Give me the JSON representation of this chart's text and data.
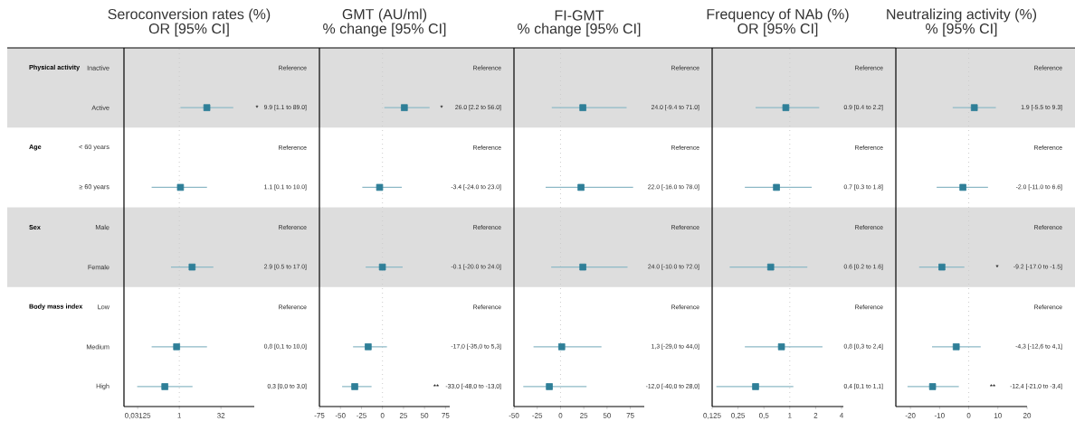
{
  "chart_data": [
    {
      "type": "scatter",
      "orientation": "horizontal",
      "title": "Seroconversion rates (%)",
      "subtitle": "OR [95% CI]",
      "log": "x",
      "categories": [
        "Inactive",
        "Active",
        "< 60 years",
        "≥ 60 years",
        "Male",
        "Female",
        "Low",
        "Medium",
        "High"
      ],
      "values": [
        null,
        9.9,
        null,
        1.1,
        null,
        2.9,
        null,
        0.8,
        0.3
      ],
      "errors": [
        null,
        [
          1.1,
          89.0
        ],
        null,
        [
          0.1,
          10.0
        ],
        null,
        [
          0.5,
          17.0
        ],
        null,
        [
          0.1,
          10.0
        ],
        [
          0.03,
          3.0
        ]
      ],
      "value_labels": [
        "Reference",
        "9.9 [1.1 to 89.0]",
        "Reference",
        "1.1 [0.1 to 10.0]",
        "Reference",
        "2.9 [0.5 to 17.0]",
        "Reference",
        "0,8 [0,1 to 10,0]",
        "0,3 [0,0 to 3,0]"
      ],
      "color": "#2f7f98",
      "marker": "square",
      "xlim": [
        0.01,
        512
      ],
      "xticks": [
        {
          "value": 0.03125,
          "label": "0,03125"
        },
        1,
        32
      ],
      "ref_lines": [
        {
          "axis": "x",
          "value": 1,
          "color": "#cccccc",
          "line_style": "dotted"
        }
      ],
      "bands": [
        {
          "axis": "y",
          "from": "Inactive",
          "to": "Active",
          "color": "#dddddd"
        },
        {
          "axis": "y",
          "from": "Male",
          "to": "Female",
          "color": "#dddddd"
        }
      ],
      "annotations": [
        "Physical activity",
        "Age",
        "Sex",
        "Body mass index",
        "*"
      ]
    },
    {
      "type": "scatter",
      "orientation": "horizontal",
      "title": "GMT (AU/ml)",
      "subtitle": "% change [95% CI]",
      "tick_labels": "x",
      "categories": [
        "Inactive",
        "Active",
        "< 60 years",
        "≥ 60 years",
        "Male",
        "Female",
        "Low",
        "Medium",
        "High"
      ],
      "values": [
        null,
        26.0,
        null,
        -3.4,
        null,
        -0.1,
        null,
        -17.0,
        -33.0
      ],
      "errors": [
        null,
        [
          2.2,
          56.0
        ],
        null,
        [
          -24.0,
          23.0
        ],
        null,
        [
          -20.0,
          24.0
        ],
        null,
        [
          -35.0,
          5.3
        ],
        [
          -48.0,
          -13.0
        ]
      ],
      "value_labels": [
        "Reference",
        "26.0 [2.2 to 56.0]",
        "Reference",
        "-3.4 [-24.0 to 23.0]",
        "Reference",
        "-0.1 [-20.0 to 24.0]",
        "Reference",
        "-17,0 [-35,0 to 5,3]",
        "-33,0 [-48,0 to -13,0]"
      ],
      "color": "#2f7f98",
      "marker": "square",
      "xlim": [
        -75,
        80
      ],
      "xticks": [
        -75,
        -50,
        -25,
        0,
        25,
        50,
        75
      ],
      "ref_lines": [
        {
          "axis": "x",
          "value": 0,
          "color": "#cccccc",
          "line_style": "dotted"
        }
      ],
      "bands": [
        {
          "axis": "y",
          "from": "Inactive",
          "to": "Active",
          "color": "#dddddd"
        },
        {
          "axis": "y",
          "from": "Male",
          "to": "Female",
          "color": "#dddddd"
        }
      ],
      "annotations": [
        "*",
        "**"
      ]
    },
    {
      "type": "scatter",
      "orientation": "horizontal",
      "title": "FI-GMT",
      "subtitle": "% change [95% CI]",
      "tick_labels": "x",
      "categories": [
        "Inactive",
        "Active",
        "< 60 years",
        "≥ 60 years",
        "Male",
        "Female",
        "Low",
        "Medium",
        "High"
      ],
      "values": [
        null,
        24.0,
        null,
        22.0,
        null,
        24.0,
        null,
        1.3,
        -12.0
      ],
      "errors": [
        null,
        [
          -9.4,
          71.0
        ],
        null,
        [
          -16.0,
          78.0
        ],
        null,
        [
          -10.0,
          72.0
        ],
        null,
        [
          -29.0,
          44.0
        ],
        [
          -40.0,
          28.0
        ]
      ],
      "value_labels": [
        "Reference",
        "24.0 [-9.4 to 71.0]",
        "Reference",
        "22.0 [-16.0 to 78.0]",
        "Reference",
        "24.0 [-10.0 to 72.0]",
        "Reference",
        "1,3 [-29,0 to 44,0]",
        "-12,0 [-40,0 to 28,0]"
      ],
      "color": "#2f7f98",
      "marker": "square",
      "xlim": [
        -50,
        90
      ],
      "xticks": [
        -50,
        -25,
        0,
        25,
        50,
        75
      ],
      "ref_lines": [
        {
          "axis": "x",
          "value": 0,
          "color": "#cccccc",
          "line_style": "dotted"
        }
      ],
      "bands": [
        {
          "axis": "y",
          "from": "Inactive",
          "to": "Active",
          "color": "#dddddd"
        },
        {
          "axis": "y",
          "from": "Male",
          "to": "Female",
          "color": "#dddddd"
        }
      ]
    },
    {
      "type": "scatter",
      "orientation": "horizontal",
      "title": "Frequency of NAb (%)",
      "subtitle": "OR [95% CI]",
      "tick_labels": "x",
      "log": "x",
      "categories": [
        "Inactive",
        "Active",
        "< 60 years",
        "≥ 60 years",
        "Male",
        "Female",
        "Low",
        "Medium",
        "High"
      ],
      "values": [
        null,
        0.9,
        null,
        0.7,
        null,
        0.6,
        null,
        0.8,
        0.4
      ],
      "errors": [
        null,
        [
          0.4,
          2.2
        ],
        null,
        [
          0.3,
          1.8
        ],
        null,
        [
          0.2,
          1.6
        ],
        null,
        [
          0.3,
          2.4
        ],
        [
          0.14,
          1.1
        ]
      ],
      "value_labels": [
        "Reference",
        "0.9 [0.4 to 2.2]",
        "Reference",
        "0.7 [0.3 to 1.8]",
        "Reference",
        "0.6 [0.2 to 1.6]",
        "Reference",
        "0,8 [0,3 to 2,4]",
        "0,4 [0,1 to 1,1]"
      ],
      "color": "#2f7f98",
      "marker": "square",
      "xlim": [
        0.125,
        4.2
      ],
      "xticks": [
        {
          "value": 0.125,
          "label": "0,125"
        },
        {
          "value": 0.25,
          "label": "0,25"
        },
        {
          "value": 0.5,
          "label": "0,5"
        },
        1,
        2,
        4
      ],
      "ref_lines": [
        {
          "axis": "x",
          "value": 1,
          "color": "#cccccc",
          "line_style": "dotted"
        }
      ],
      "bands": [
        {
          "axis": "y",
          "from": "Inactive",
          "to": "Active",
          "color": "#dddddd"
        },
        {
          "axis": "y",
          "from": "Male",
          "to": "Female",
          "color": "#dddddd"
        }
      ]
    },
    {
      "type": "scatter",
      "orientation": "horizontal",
      "title": "Neutralizing activity (%)",
      "subtitle": "% [95% CI]",
      "tick_labels": "x",
      "categories": [
        "Inactive",
        "Active",
        "< 60 years",
        "≥ 60 years",
        "Male",
        "Female",
        "Low",
        "Medium",
        "High"
      ],
      "values": [
        null,
        1.9,
        null,
        -2.0,
        null,
        -9.2,
        null,
        -4.3,
        -12.4
      ],
      "errors": [
        null,
        [
          -5.5,
          9.3
        ],
        null,
        [
          -11.0,
          6.6
        ],
        null,
        [
          -17.0,
          -1.5
        ],
        null,
        [
          -12.6,
          4.1
        ],
        [
          -21.0,
          -3.4
        ]
      ],
      "value_labels": [
        "Reference",
        "1.9 [-5.5 to 9.3]",
        "Reference",
        "-2.0 [-11.0 to 6.6]",
        "Reference",
        "-9.2 [-17.0 to -1.5]",
        "Reference",
        "-4,3 [-12,6 to 4,1]",
        "-12,4 [-21,0 to -3,4]"
      ],
      "color": "#2f7f98",
      "marker": "square",
      "xlim": [
        -25,
        20
      ],
      "xticks": [
        -20,
        -10,
        0,
        10,
        20
      ],
      "ref_lines": [
        {
          "axis": "x",
          "value": 0,
          "color": "#cccccc",
          "line_style": "dotted"
        }
      ],
      "bands": [
        {
          "axis": "y",
          "from": "Inactive",
          "to": "Active",
          "color": "#dddddd"
        },
        {
          "axis": "y",
          "from": "Male",
          "to": "Female",
          "color": "#dddddd"
        }
      ],
      "annotations": [
        "*",
        "**"
      ]
    }
  ]
}
